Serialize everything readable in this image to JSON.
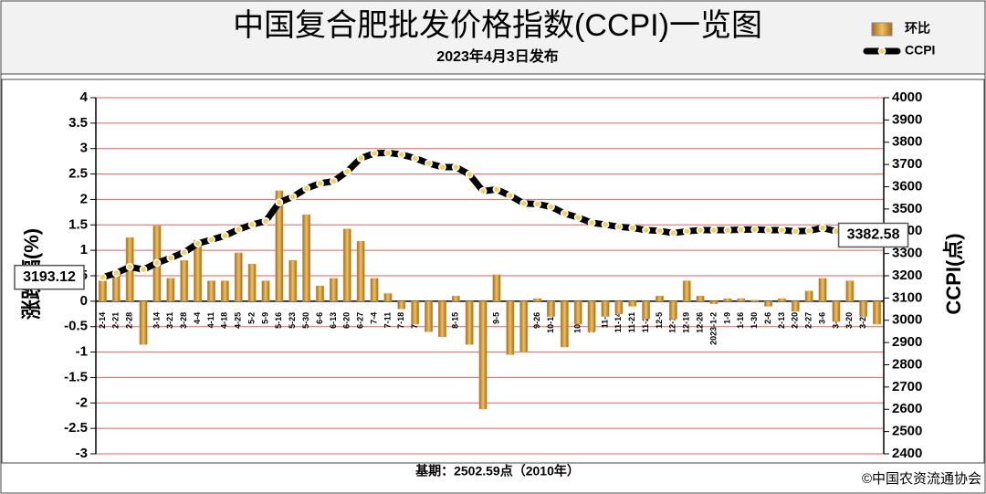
{
  "chart_data": {
    "type": "bar",
    "title": "中国复合肥批发价格指数(CCPI)一览图",
    "subtitle": "2023年4月3日发布",
    "ylabel": "涨跌幅(%)",
    "y2label": "CCPI(点)",
    "footer": "基期：2502.59点（2010年）",
    "credit": "©中国农资流通协会",
    "categories": [
      "2-14",
      "2-21",
      "2-28",
      "3-7",
      "3-14",
      "3-21",
      "3-28",
      "4-4",
      "4-11",
      "4-18",
      "4-25",
      "5-2",
      "5-9",
      "5-16",
      "5-23",
      "5-30",
      "6-6",
      "6-13",
      "6-20",
      "6-27",
      "7-4",
      "7-11",
      "7-18",
      "7-25",
      "8-1",
      "8-8",
      "8-15",
      "8-22",
      "8-29",
      "9-5",
      "9-12",
      "9-19",
      "9-26",
      "10-10",
      "10-17",
      "10-24",
      "10-31",
      "11-7",
      "11-14",
      "11-21",
      "11-28",
      "12-5",
      "12-12",
      "12-19",
      "12-26",
      "2023-1-2",
      "1-9",
      "1-16",
      "1-30",
      "2-6",
      "2-13",
      "2-20",
      "2-27",
      "3-6",
      "3-13",
      "3-20",
      "3-27",
      "4-3"
    ],
    "series": [
      {
        "name": "环比",
        "type": "bar",
        "color": "#d9a040",
        "values": [
          0.4,
          0.6,
          1.25,
          -0.85,
          1.48,
          0.45,
          0.8,
          1.2,
          0.4,
          0.4,
          0.95,
          0.73,
          0.4,
          2.17,
          0.8,
          1.7,
          0.3,
          0.45,
          1.42,
          1.18,
          0.45,
          0.15,
          -0.15,
          -0.45,
          -0.6,
          -0.7,
          0.1,
          -0.85,
          -2.12,
          0.52,
          -1.05,
          -1.0,
          0.05,
          -0.3,
          -0.9,
          -0.45,
          -0.6,
          -0.3,
          -0.25,
          -0.1,
          -0.35,
          0.1,
          -0.35,
          0.4,
          0.1,
          -0.05,
          0.05,
          0.05,
          0.02,
          -0.1,
          0.05,
          -0.2,
          0.2,
          0.45,
          -0.4,
          0.4,
          -0.3,
          -0.45
        ]
      },
      {
        "name": "CCPI",
        "type": "line",
        "axis": "y2",
        "color": "#000000",
        "values": [
          3193.12,
          3212,
          3240,
          3228,
          3258,
          3280,
          3305,
          3345,
          3362,
          3380,
          3408,
          3430,
          3445,
          3530,
          3555,
          3592,
          3615,
          3625,
          3668,
          3728,
          3750,
          3752,
          3745,
          3728,
          3705,
          3688,
          3688,
          3655,
          3580,
          3588,
          3560,
          3525,
          3522,
          3510,
          3480,
          3462,
          3438,
          3430,
          3420,
          3415,
          3405,
          3402,
          3392,
          3400,
          3405,
          3405,
          3405,
          3407,
          3408,
          3405,
          3405,
          3400,
          3402,
          3415,
          3400,
          3405,
          3395,
          3382.58
        ]
      }
    ],
    "ylim": [
      -3,
      4
    ],
    "yticks": [
      -3,
      -2.5,
      -2,
      -1.5,
      -1,
      -0.5,
      0,
      0.5,
      1,
      1.5,
      2,
      2.5,
      3,
      3.5,
      4
    ],
    "y2lim": [
      2400,
      4000
    ],
    "y2ticks": [
      2400,
      2500,
      2600,
      2700,
      2800,
      2900,
      3000,
      3100,
      3200,
      3300,
      3400,
      3500,
      3600,
      3700,
      3800,
      3900,
      4000
    ],
    "grid": true,
    "grid_color": "#e06060",
    "legend": "upper right"
  }
}
